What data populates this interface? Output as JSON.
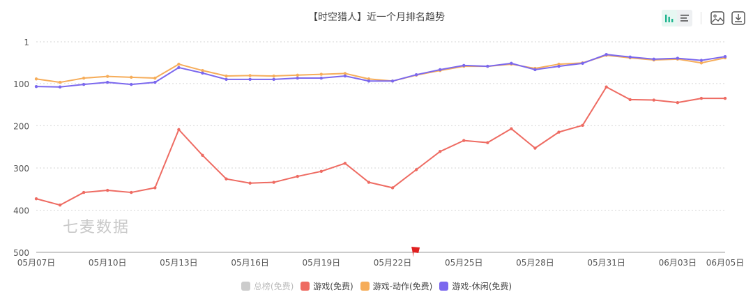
{
  "title": "【时空猎人】近一个月排名趋势",
  "toolbar": {
    "buttons": [
      {
        "name": "bar-chart-view",
        "icon": "bar-chart-icon",
        "active": true
      },
      {
        "name": "list-view",
        "icon": "list-icon",
        "active": false
      },
      {
        "name": "save-image",
        "icon": "image-icon"
      },
      {
        "name": "download",
        "icon": "download-icon"
      }
    ]
  },
  "watermark": "七麦数据",
  "colors": {
    "red": "#ee6b62",
    "orange": "#f6ad5a",
    "purple": "#7b68ee",
    "gray": "#cccccc",
    "accent": "#1fb58f"
  },
  "chart_data": {
    "type": "line",
    "title": "【时空猎人】近一个月排名趋势",
    "xlabel": "",
    "ylabel": "",
    "y_inverted": true,
    "ylim": [
      1,
      500
    ],
    "yticks": [
      1,
      100,
      200,
      300,
      400,
      500
    ],
    "grid": true,
    "legend_position": "bottom",
    "x": [
      "05月07日",
      "05月08日",
      "05月09日",
      "05月10日",
      "05月11日",
      "05月12日",
      "05月13日",
      "05月14日",
      "05月15日",
      "05月16日",
      "05月17日",
      "05月18日",
      "05月19日",
      "05月20日",
      "05月21日",
      "05月22日",
      "05月23日",
      "05月24日",
      "05月25日",
      "05月26日",
      "05月27日",
      "05月28日",
      "05月29日",
      "05月30日",
      "05月31日",
      "06月01日",
      "06月02日",
      "06月03日",
      "06月04日",
      "06月05日"
    ],
    "xtick_labels": [
      "05月07日",
      "05月10日",
      "05月13日",
      "05月16日",
      "05月19日",
      "05月22日",
      "05月25日",
      "05月28日",
      "05月31日",
      "06月03日",
      "06月05日"
    ],
    "annotation": {
      "type": "flag",
      "x": "05月23日",
      "color": "#e02020"
    },
    "series": [
      {
        "name": "总榜(免费)",
        "color": "#cccccc",
        "visible": false,
        "values": []
      },
      {
        "name": "游戏(免费)",
        "color": "#ee6b62",
        "visible": true,
        "values": [
          373,
          388,
          358,
          353,
          358,
          347,
          209,
          270,
          326,
          336,
          334,
          320,
          308,
          289,
          334,
          347,
          304,
          261,
          235,
          240,
          207,
          253,
          215,
          199,
          108,
          138,
          139,
          145,
          135,
          135
        ]
      },
      {
        "name": "游戏-动作(免费)",
        "color": "#f6ad5a",
        "visible": true,
        "values": [
          89,
          97,
          87,
          83,
          85,
          87,
          54,
          69,
          82,
          81,
          82,
          80,
          78,
          76,
          89,
          94,
          80,
          69,
          59,
          59,
          54,
          64,
          54,
          51,
          33,
          39,
          44,
          42,
          51,
          39
        ]
      },
      {
        "name": "游戏-休闲(免费)",
        "color": "#7b68ee",
        "visible": true,
        "values": [
          107,
          108,
          102,
          97,
          102,
          97,
          62,
          75,
          90,
          90,
          90,
          87,
          87,
          82,
          94,
          94,
          79,
          67,
          57,
          59,
          52,
          67,
          59,
          52,
          31,
          37,
          42,
          40,
          45,
          36
        ]
      }
    ]
  }
}
